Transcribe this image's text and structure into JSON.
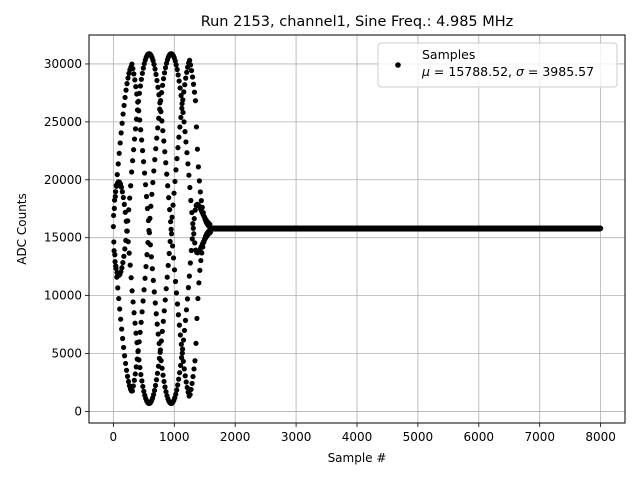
{
  "chart_data": {
    "type": "scatter",
    "title": "Run 2153, channel1, Sine Freq.: 4.985 MHz",
    "xlabel": "Sample #",
    "ylabel": "ADC Counts",
    "xlim": [
      -400,
      8400
    ],
    "ylim": [
      -1000,
      32500
    ],
    "xticks": [
      0,
      1000,
      2000,
      3000,
      4000,
      5000,
      6000,
      7000,
      8000
    ],
    "yticks": [
      0,
      5000,
      10000,
      15000,
      20000,
      25000,
      30000
    ],
    "grid": true,
    "legend": {
      "placement": "top-right",
      "entries": [
        {
          "name": "Samples",
          "stats_mu": "15788.52",
          "stats_sigma": "3985.57"
        }
      ]
    },
    "series": [
      {
        "name": "Samples",
        "marker": "dot",
        "color": "#000000",
        "description_points": {
          "burst_x": [
            0,
            1600
          ],
          "burst_peak_x": [
            600,
            950
          ],
          "burst_max": 30900,
          "burst_min": 700,
          "baseline": 15788.52,
          "baseline_x": [
            1600,
            8000
          ]
        }
      }
    ]
  }
}
